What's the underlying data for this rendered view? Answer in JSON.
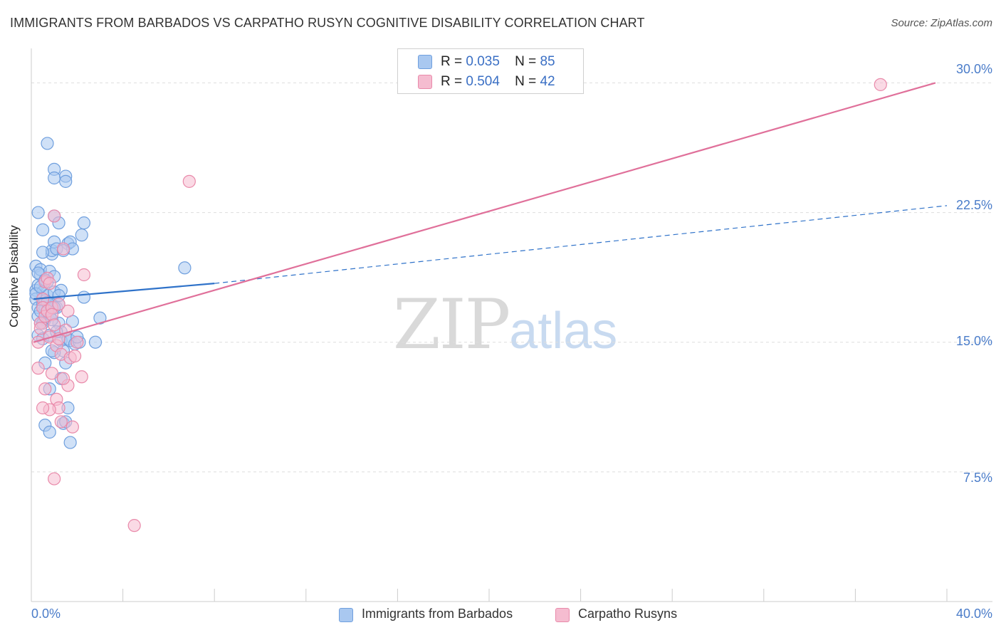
{
  "title": "IMMIGRANTS FROM BARBADOS VS CARPATHO RUSYN COGNITIVE DISABILITY CORRELATION CHART",
  "source": "Source: ZipAtlas.com",
  "watermark": {
    "zip": "ZIP",
    "atlas": "atlas"
  },
  "legend": {
    "rows": [
      {
        "r_label": "R =",
        "r_value": "0.035",
        "n_label": "N =",
        "n_value": "85"
      },
      {
        "r_label": "R =",
        "r_value": "0.504",
        "n_label": "N =",
        "n_value": "42"
      }
    ]
  },
  "bottom_legend": [
    "Immigrants from Barbados",
    "Carpatho Rusyns"
  ],
  "colors": {
    "blue_fill": "#a9c8f0",
    "blue_stroke": "#6f9fde",
    "blue_line": "#2f72c9",
    "pink_fill": "#f5bcd0",
    "pink_stroke": "#e98aaa",
    "pink_line": "#e0709a",
    "grid": "#dddddd",
    "tick_text": "#4a7cc9"
  },
  "chart_data": {
    "type": "scatter",
    "title": "IMMIGRANTS FROM BARBADOS VS CARPATHO RUSYN COGNITIVE DISABILITY CORRELATION CHART",
    "xlabel": "",
    "ylabel": "Cognitive Disability",
    "xlim": [
      0,
      40
    ],
    "ylim": [
      0,
      31.5
    ],
    "x_tick_labels": [
      "0.0%",
      "40.0%"
    ],
    "y_ticks": [
      7.5,
      15.0,
      22.5,
      30.0
    ],
    "y_tick_labels": [
      "7.5%",
      "15.0%",
      "22.5%",
      "30.0%"
    ],
    "grid": "horizontal dashed",
    "legend_position": "top-center",
    "series": [
      {
        "name": "Immigrants from Barbados",
        "color": "#a9c8f0",
        "trend": {
          "solid": [
            [
              0.1,
              17.5
            ],
            [
              8.0,
              18.4
            ]
          ],
          "dashed": [
            [
              8.0,
              18.4
            ],
            [
              40.0,
              22.9
            ]
          ]
        },
        "points": [
          [
            0.2,
            18.0
          ],
          [
            0.2,
            17.5
          ],
          [
            0.3,
            18.3
          ],
          [
            0.3,
            17.0
          ],
          [
            0.3,
            16.5
          ],
          [
            0.2,
            19.4
          ],
          [
            0.4,
            18.9
          ],
          [
            0.4,
            19.2
          ],
          [
            0.5,
            17.9
          ],
          [
            0.5,
            17.2
          ],
          [
            0.6,
            16.9
          ],
          [
            0.6,
            16.3
          ],
          [
            0.4,
            16.1
          ],
          [
            0.3,
            15.4
          ],
          [
            0.5,
            15.2
          ],
          [
            0.7,
            17.7
          ],
          [
            0.7,
            18.5
          ],
          [
            0.8,
            19.1
          ],
          [
            0.9,
            20.1
          ],
          [
            0.9,
            20.3
          ],
          [
            1.0,
            20.8
          ],
          [
            1.1,
            20.4
          ],
          [
            0.5,
            20.2
          ],
          [
            0.5,
            21.5
          ],
          [
            0.3,
            22.5
          ],
          [
            0.7,
            16.5
          ],
          [
            0.8,
            16.6
          ],
          [
            0.9,
            17.2
          ],
          [
            1.0,
            17.9
          ],
          [
            1.0,
            18.8
          ],
          [
            1.1,
            17.0
          ],
          [
            1.2,
            17.2
          ],
          [
            1.2,
            16.1
          ],
          [
            1.3,
            15.6
          ],
          [
            1.3,
            15.1
          ],
          [
            1.4,
            14.5
          ],
          [
            1.5,
            13.8
          ],
          [
            1.6,
            15.2
          ],
          [
            1.7,
            15.1
          ],
          [
            1.8,
            16.2
          ],
          [
            1.9,
            14.9
          ],
          [
            2.1,
            15.0
          ],
          [
            1.3,
            12.9
          ],
          [
            1.4,
            10.3
          ],
          [
            1.5,
            10.4
          ],
          [
            1.6,
            11.2
          ],
          [
            1.7,
            9.2
          ],
          [
            0.8,
            12.3
          ],
          [
            0.6,
            13.8
          ],
          [
            0.6,
            10.2
          ],
          [
            0.8,
            9.8
          ],
          [
            1.0,
            14.4
          ],
          [
            0.9,
            14.5
          ],
          [
            0.7,
            26.5
          ],
          [
            1.0,
            25.0
          ],
          [
            1.0,
            24.5
          ],
          [
            1.5,
            24.6
          ],
          [
            1.5,
            24.3
          ],
          [
            1.0,
            22.3
          ],
          [
            1.2,
            21.9
          ],
          [
            1.6,
            20.7
          ],
          [
            1.7,
            20.8
          ],
          [
            1.8,
            20.4
          ],
          [
            2.2,
            21.2
          ],
          [
            2.3,
            21.9
          ],
          [
            1.4,
            20.3
          ],
          [
            2.3,
            17.6
          ],
          [
            2.8,
            15.0
          ],
          [
            3.0,
            16.4
          ],
          [
            6.7,
            19.3
          ],
          [
            0.6,
            17.4
          ],
          [
            0.4,
            16.8
          ],
          [
            0.5,
            16.1
          ],
          [
            0.8,
            15.4
          ],
          [
            1.0,
            17.0
          ],
          [
            1.3,
            18.0
          ],
          [
            0.2,
            17.8
          ],
          [
            0.3,
            19.0
          ],
          [
            0.4,
            18.2
          ],
          [
            0.9,
            16.3
          ],
          [
            1.2,
            17.7
          ],
          [
            0.6,
            18.6
          ],
          [
            0.7,
            17.3
          ],
          [
            1.1,
            15.6
          ],
          [
            2.0,
            15.3
          ]
        ]
      },
      {
        "name": "Carpatho Rusyns",
        "color": "#f5bcd0",
        "trend": {
          "solid": [
            [
              0.1,
              15.0
            ],
            [
              39.5,
              30.0
            ]
          ]
        },
        "points": [
          [
            0.3,
            15.0
          ],
          [
            0.3,
            13.5
          ],
          [
            0.4,
            16.1
          ],
          [
            0.4,
            15.8
          ],
          [
            0.5,
            17.5
          ],
          [
            0.5,
            17.0
          ],
          [
            0.6,
            16.5
          ],
          [
            0.6,
            18.5
          ],
          [
            0.7,
            18.7
          ],
          [
            0.7,
            16.8
          ],
          [
            0.8,
            18.4
          ],
          [
            0.8,
            15.3
          ],
          [
            0.9,
            17.0
          ],
          [
            0.9,
            16.6
          ],
          [
            1.0,
            22.3
          ],
          [
            1.0,
            16.0
          ],
          [
            1.1,
            14.8
          ],
          [
            1.1,
            11.7
          ],
          [
            1.2,
            11.2
          ],
          [
            1.2,
            15.2
          ],
          [
            1.3,
            10.4
          ],
          [
            1.3,
            14.3
          ],
          [
            1.4,
            20.4
          ],
          [
            1.5,
            15.7
          ],
          [
            1.6,
            12.5
          ],
          [
            1.6,
            16.8
          ],
          [
            1.7,
            14.1
          ],
          [
            1.8,
            10.1
          ],
          [
            1.9,
            14.2
          ],
          [
            2.0,
            15.0
          ],
          [
            2.2,
            13.0
          ],
          [
            2.3,
            18.9
          ],
          [
            0.6,
            12.3
          ],
          [
            0.8,
            11.1
          ],
          [
            0.5,
            11.2
          ],
          [
            1.0,
            7.1
          ],
          [
            4.5,
            4.4
          ],
          [
            6.9,
            24.3
          ],
          [
            37.1,
            29.9
          ],
          [
            1.4,
            12.9
          ],
          [
            0.9,
            13.2
          ],
          [
            1.2,
            17.2
          ]
        ]
      }
    ]
  }
}
